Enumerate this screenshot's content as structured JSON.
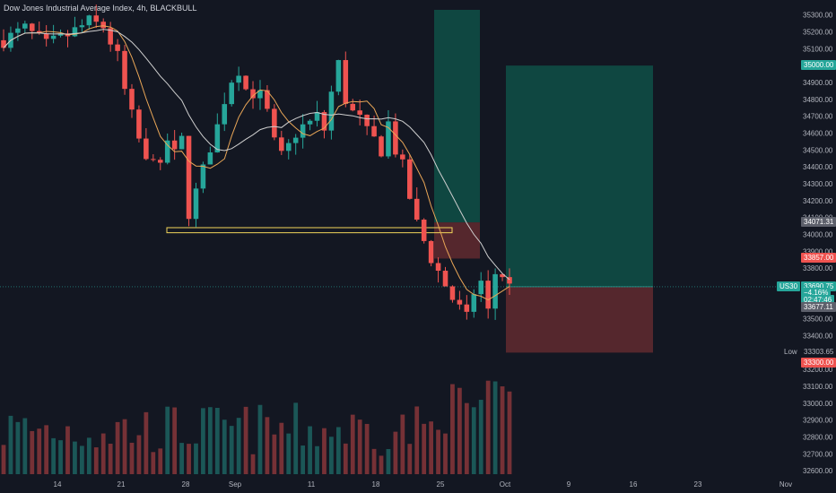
{
  "chart_data": {
    "type": "candlestick",
    "title": "Dow Jones Industrial Average Index, 4h, BLACKBULL",
    "symbol": "US30",
    "y_ticks": [
      35300,
      35200,
      35100,
      35000,
      34900,
      34800,
      34700,
      34600,
      34500,
      34400,
      34300,
      34200,
      34100,
      34000,
      33900,
      33800,
      33700,
      33600,
      33500,
      33400,
      33300,
      33200,
      33100,
      33000,
      32900,
      32800,
      32700,
      32600
    ],
    "ylim": [
      32580,
      35330
    ],
    "x_tick_labels": [
      "14",
      "21",
      "28",
      "Sep",
      "11",
      "18",
      "25",
      "Oct",
      "9",
      "16",
      "23",
      "Nov"
    ],
    "ohlc_close_path": [
      [
        0,
        35150
      ],
      [
        3,
        35220
      ],
      [
        6,
        35120
      ],
      [
        9,
        35180
      ],
      [
        12,
        35260
      ],
      [
        14,
        35230
      ],
      [
        16,
        35050
      ],
      [
        17,
        34850
      ],
      [
        18,
        34700
      ],
      [
        19,
        34560
      ],
      [
        20,
        34420
      ],
      [
        21,
        34480
      ],
      [
        22,
        34380
      ],
      [
        23,
        34560
      ],
      [
        24,
        34470
      ],
      [
        25,
        34560
      ],
      [
        26,
        34130
      ],
      [
        27,
        34250
      ],
      [
        28,
        34380
      ],
      [
        29,
        34520
      ],
      [
        30,
        34640
      ],
      [
        31,
        34800
      ],
      [
        32,
        34920
      ],
      [
        33,
        34980
      ],
      [
        34,
        34860
      ],
      [
        35,
        34840
      ],
      [
        36,
        34820
      ],
      [
        37,
        34720
      ],
      [
        38,
        34540
      ],
      [
        39,
        34460
      ],
      [
        40,
        34520
      ],
      [
        41,
        34600
      ],
      [
        42,
        34640
      ],
      [
        43,
        34660
      ],
      [
        44,
        34700
      ],
      [
        45,
        34620
      ],
      [
        46,
        34840
      ],
      [
        47,
        35010
      ],
      [
        48,
        34800
      ],
      [
        49,
        34720
      ],
      [
        50,
        34680
      ],
      [
        51,
        34600
      ],
      [
        52,
        34560
      ],
      [
        53,
        34500
      ],
      [
        54,
        34660
      ],
      [
        55,
        34500
      ],
      [
        56,
        34400
      ],
      [
        57,
        34220
      ],
      [
        58,
        34060
      ],
      [
        59,
        33960
      ],
      [
        60,
        33860
      ],
      [
        61,
        33780
      ],
      [
        62,
        33700
      ],
      [
        63,
        33620
      ],
      [
        64,
        33560
      ],
      [
        65,
        33500
      ],
      [
        66,
        33660
      ],
      [
        67,
        33720
      ],
      [
        68,
        33540
      ],
      [
        69,
        33770
      ],
      [
        70,
        33760
      ],
      [
        71,
        33690
      ]
    ],
    "price_now": "33690.75",
    "change_pct": "−4.16%",
    "countdown": "02:47:46",
    "labels": {
      "target": "35000.00",
      "entry": "34071.31",
      "stop": "33857.00",
      "last_bar": "33677.11",
      "low_caption": "Low",
      "low_value": "33303.65",
      "tp2": "33300.00"
    },
    "support_zone": [
      34010,
      34040
    ],
    "position_right": {
      "target": 35000,
      "entry": 33690,
      "stop": 33300
    },
    "position_left": {
      "target": 35330,
      "entry": 34071.31,
      "stop": 33857
    },
    "grid": false,
    "colors": {
      "background": "#131722",
      "up": "#26a69a",
      "down": "#ef5350",
      "ma_fast": "#e9a657",
      "ma_slow": "#cfcfcf",
      "zone_profit": "#0f4741",
      "zone_loss": "#55272d",
      "support": "#f2d65a",
      "axis_text": "#b2b5be",
      "label_gray": "#5d606b",
      "symbol_badge": "#26a69a"
    }
  }
}
